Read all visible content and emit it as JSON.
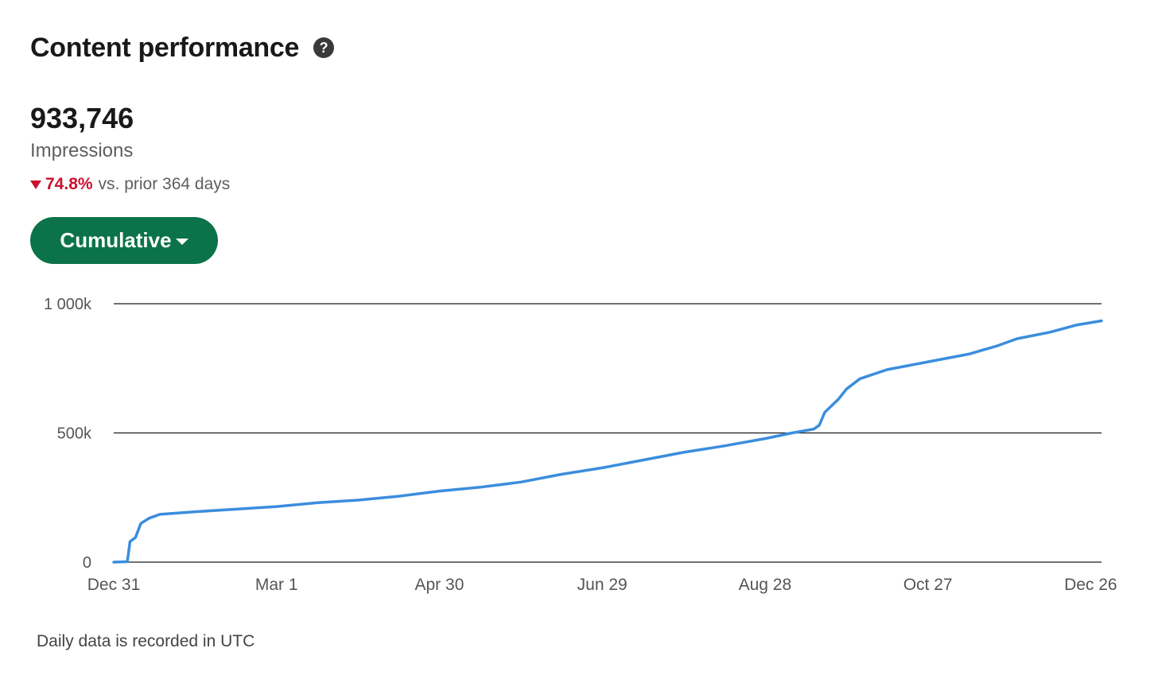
{
  "header": {
    "title": "Content performance",
    "help_icon": "question-circle-icon"
  },
  "metric": {
    "value": "933,746",
    "label": "Impressions",
    "change": {
      "direction": "down",
      "value": "74.8%",
      "comparison": "vs. prior 364 days",
      "color": "#cb112d"
    }
  },
  "view_selector": {
    "label": "Cumulative",
    "icon": "caret-down-icon",
    "color": "#0b7249"
  },
  "footnote": "Daily data is recorded in UTC",
  "chart_data": {
    "type": "line",
    "title": "",
    "xlabel": "",
    "ylabel": "",
    "x_ticks": [
      "Dec 31",
      "Mar 1",
      "Apr 30",
      "Jun 29",
      "Aug 28",
      "Oct 27",
      "Dec 26"
    ],
    "x_tick_days": [
      0,
      60,
      120,
      180,
      240,
      300,
      360
    ],
    "y_ticks": [
      {
        "value": 0,
        "label": "0"
      },
      {
        "value": 500000,
        "label": "500k"
      },
      {
        "value": 1000000,
        "label": "1 000k"
      }
    ],
    "ylim": [
      0,
      1000000
    ],
    "xlim": [
      0,
      364
    ],
    "grid": true,
    "line_color": "#3b8ddd",
    "series": [
      {
        "name": "",
        "points": [
          [
            0,
            0
          ],
          [
            5,
            2000
          ],
          [
            6,
            80000
          ],
          [
            8,
            95000
          ],
          [
            10,
            150000
          ],
          [
            13,
            170000
          ],
          [
            17,
            185000
          ],
          [
            30,
            195000
          ],
          [
            45,
            205000
          ],
          [
            60,
            215000
          ],
          [
            75,
            230000
          ],
          [
            90,
            240000
          ],
          [
            105,
            255000
          ],
          [
            120,
            275000
          ],
          [
            135,
            290000
          ],
          [
            150,
            310000
          ],
          [
            165,
            340000
          ],
          [
            180,
            365000
          ],
          [
            195,
            395000
          ],
          [
            210,
            425000
          ],
          [
            225,
            450000
          ],
          [
            240,
            478000
          ],
          [
            250,
            500000
          ],
          [
            258,
            515000
          ],
          [
            260,
            530000
          ],
          [
            262,
            580000
          ],
          [
            267,
            630000
          ],
          [
            270,
            670000
          ],
          [
            275,
            710000
          ],
          [
            285,
            745000
          ],
          [
            300,
            775000
          ],
          [
            315,
            805000
          ],
          [
            325,
            835000
          ],
          [
            333,
            865000
          ],
          [
            345,
            890000
          ],
          [
            355,
            918000
          ],
          [
            364,
            933746
          ]
        ]
      }
    ]
  }
}
